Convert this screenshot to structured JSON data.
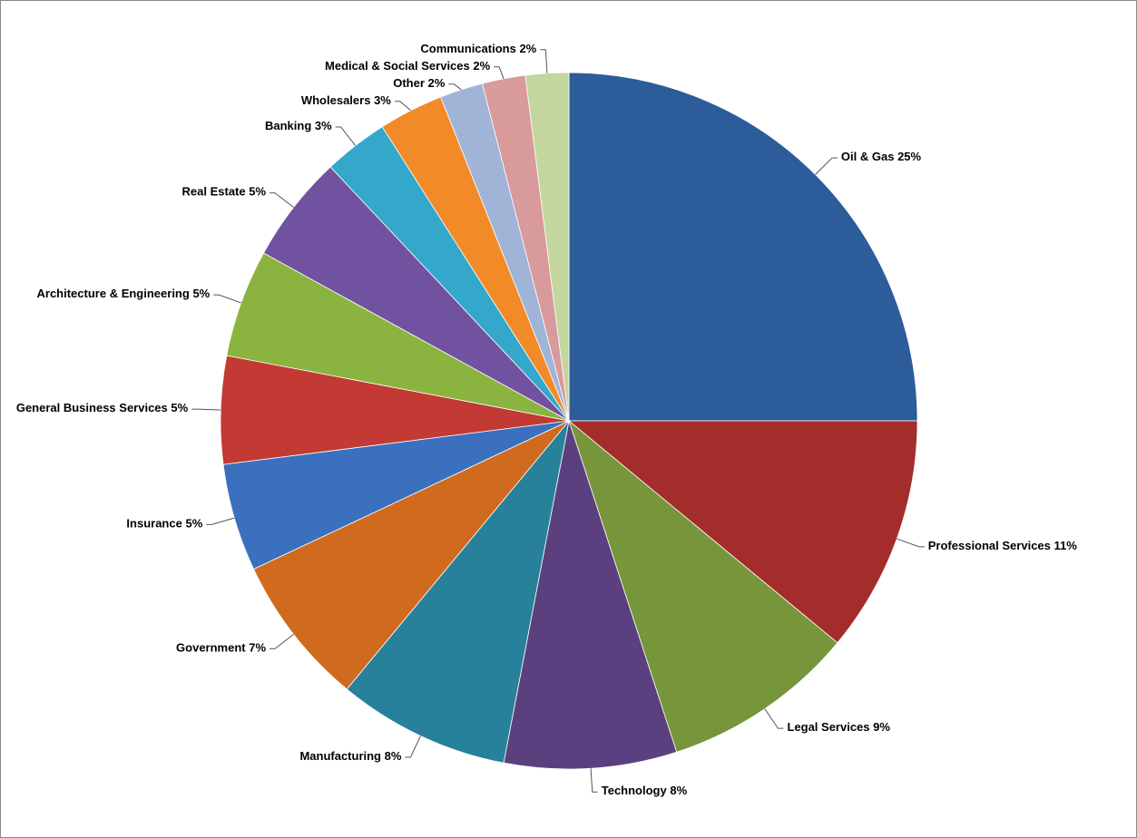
{
  "chart_data": {
    "type": "pie",
    "categories": [
      "Oil & Gas",
      "Professional Services",
      "Legal Services",
      "Technology",
      "Manufacturing",
      "Government",
      "Insurance",
      "General Business Services",
      "Architecture & Engineering",
      "Real Estate",
      "Banking",
      "Wholesalers",
      "Other",
      "Medical & Social Services",
      "Communications"
    ],
    "values": [
      25,
      11,
      9,
      8,
      8,
      7,
      5,
      5,
      5,
      5,
      3,
      3,
      2,
      2,
      2
    ],
    "value_labels": [
      "25%",
      "11%",
      "9%",
      "8%",
      "8%",
      "7%",
      "5%",
      "5%",
      "5%",
      "5%",
      "3%",
      "3%",
      "2%",
      "2%",
      "2%"
    ],
    "colors": [
      "#2c5c9a",
      "#a32d2b",
      "#77953a",
      "#5b407f",
      "#28819a",
      "#cf6a1f",
      "#3a70be",
      "#c23a33",
      "#8ab43f",
      "#7152a0",
      "#33a8cb",
      "#f28a28",
      "#a0b4d8",
      "#d89a9b",
      "#c3d69e"
    ]
  }
}
